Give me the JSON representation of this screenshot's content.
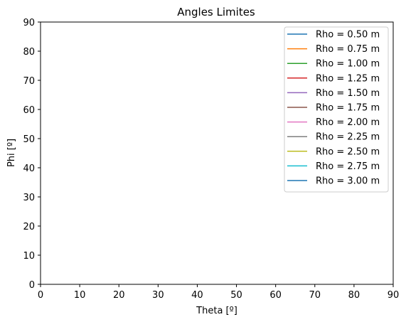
{
  "chart_data": {
    "type": "line",
    "title": "Angles Limites",
    "xlabel": "Theta [º]",
    "ylabel": "Phi [º]",
    "xlim": [
      0,
      90
    ],
    "ylim": [
      0,
      90
    ],
    "xticks": [
      0,
      10,
      20,
      30,
      40,
      50,
      60,
      70,
      80,
      90
    ],
    "yticks": [
      0,
      10,
      20,
      30,
      40,
      50,
      60,
      70,
      80,
      90
    ],
    "grid": false,
    "legend_position": "top-right",
    "series": [
      {
        "name": "Rho = 0.50 m",
        "color": "#1f77b4",
        "x": [],
        "y": []
      },
      {
        "name": "Rho = 0.75 m",
        "color": "#ff7f0e",
        "x": [],
        "y": []
      },
      {
        "name": "Rho = 1.00 m",
        "color": "#2ca02c",
        "x": [],
        "y": []
      },
      {
        "name": "Rho = 1.25 m",
        "color": "#d62728",
        "x": [],
        "y": []
      },
      {
        "name": "Rho = 1.50 m",
        "color": "#9467bd",
        "x": [],
        "y": []
      },
      {
        "name": "Rho = 1.75 m",
        "color": "#8c564b",
        "x": [],
        "y": []
      },
      {
        "name": "Rho = 2.00 m",
        "color": "#e377c2",
        "x": [],
        "y": []
      },
      {
        "name": "Rho = 2.25 m",
        "color": "#7f7f7f",
        "x": [],
        "y": []
      },
      {
        "name": "Rho = 2.50 m",
        "color": "#bcbd22",
        "x": [],
        "y": []
      },
      {
        "name": "Rho = 2.75 m",
        "color": "#17becf",
        "x": [],
        "y": []
      },
      {
        "name": "Rho = 3.00 m",
        "color": "#1f77b4",
        "x": [],
        "y": []
      }
    ]
  }
}
